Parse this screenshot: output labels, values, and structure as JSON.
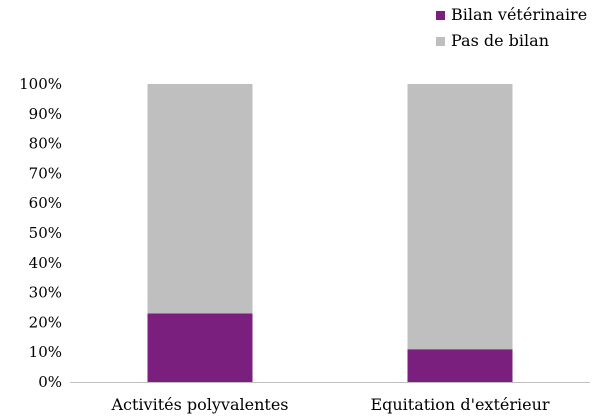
{
  "chart_data": {
    "type": "bar",
    "stacked": true,
    "percent": true,
    "title": "",
    "xlabel": "",
    "ylabel": "",
    "categories": [
      "Activités polyvalentes",
      "Equitation d'extérieur"
    ],
    "series": [
      {
        "name": "Bilan vétérinaire",
        "values": [
          23,
          11
        ],
        "color": "#7a1f7e"
      },
      {
        "name": "Pas de bilan",
        "values": [
          77,
          89
        ],
        "color": "#bfbfbf"
      }
    ],
    "ylim": [
      0,
      100
    ],
    "yticks": [
      "0%",
      "10%",
      "20%",
      "30%",
      "40%",
      "50%",
      "60%",
      "70%",
      "80%",
      "90%",
      "100%"
    ],
    "grid": false,
    "legend": "top-right"
  }
}
